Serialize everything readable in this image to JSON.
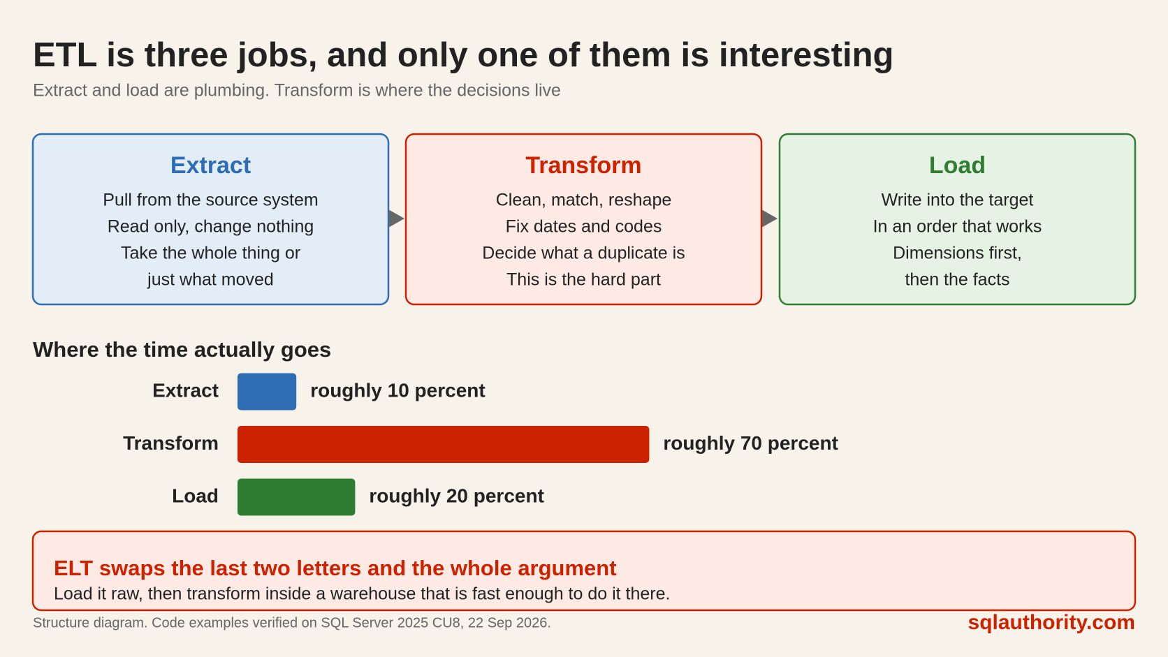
{
  "header": {
    "title": "ETL is three jobs, and only one of them is interesting",
    "subtitle": "Extract and load are plumbing. Transform is where the decisions live"
  },
  "steps": [
    {
      "title": "Extract",
      "color": "#2e6db4",
      "fill": "#e3edf8",
      "lines": [
        "Pull from the source system",
        "Read only, change nothing",
        "Take the whole thing or",
        "just what moved"
      ]
    },
    {
      "title": "Transform",
      "color": "#cc2200",
      "fill": "#fdeae5",
      "lines": [
        "Clean, match, reshape",
        "Fix dates and codes",
        "Decide what a duplicate is",
        "This is the hard part"
      ]
    },
    {
      "title": "Load",
      "color": "#2e7d32",
      "fill": "#e6f2e3",
      "lines": [
        "Write into the target",
        "In an order that works",
        "Dimensions first,",
        "then the facts"
      ]
    }
  ],
  "time_chart": {
    "title": "Where the time actually goes",
    "categories": [
      "Extract",
      "Transform",
      "Load"
    ],
    "values": [
      10,
      70,
      20
    ],
    "value_labels": [
      "roughly 10 percent",
      "roughly 70 percent",
      "roughly 20 percent"
    ],
    "colors": [
      "#2e6db4",
      "#cc2200",
      "#2e7d32"
    ]
  },
  "callout": {
    "title": "ELT swaps the last two letters and the whole argument",
    "text": "Load it raw, then transform inside a warehouse that is fast enough to do it there."
  },
  "footer": {
    "note": "Structure diagram. Code examples verified on SQL Server 2025 CU8, 22 Sep 2026.",
    "brand": "sqlauthority.com"
  }
}
